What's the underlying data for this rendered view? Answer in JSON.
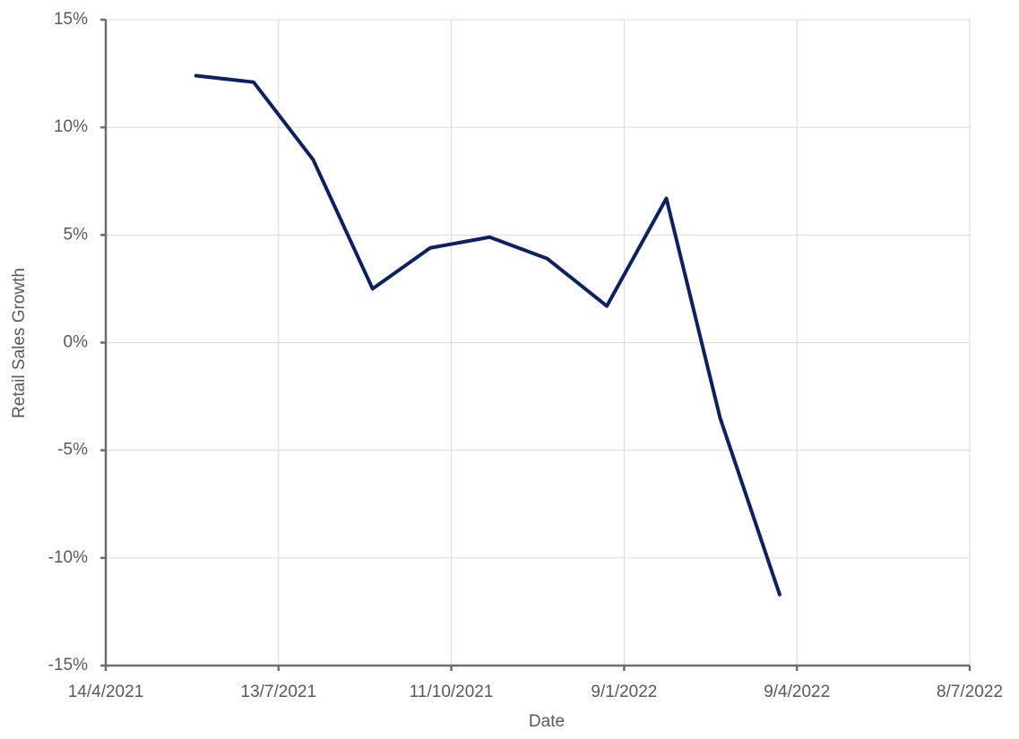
{
  "chart_data": {
    "type": "line",
    "x_label": "Date",
    "y_label": "Retail Sales Growth",
    "x": [
      "31/5/2021",
      "30/6/2021",
      "31/7/2021",
      "31/8/2021",
      "30/9/2021",
      "31/10/2021",
      "30/11/2021",
      "31/12/2021",
      "31/1/2022",
      "28/2/2022",
      "31/3/2022"
    ],
    "values": [
      12.4,
      12.1,
      8.5,
      2.5,
      4.4,
      4.9,
      3.9,
      1.7,
      6.7,
      -3.5,
      -11.7
    ],
    "color": "#0c2160",
    "xlim": [
      "14/4/2021",
      "8/7/2022"
    ],
    "xticks": [
      "14/4/2021",
      "13/7/2021",
      "11/10/2021",
      "9/1/2022",
      "9/4/2022",
      "8/7/2022"
    ],
    "ylim": [
      -15,
      15
    ],
    "yticks": [
      {
        "value": -15,
        "label": "-15%"
      },
      {
        "value": -10,
        "label": "-10%"
      },
      {
        "value": -5,
        "label": "-5%"
      },
      {
        "value": 0,
        "label": "0%"
      },
      {
        "value": 5,
        "label": "5%"
      },
      {
        "value": 10,
        "label": "10%"
      },
      {
        "value": 15,
        "label": "15%"
      }
    ],
    "grid": true
  }
}
